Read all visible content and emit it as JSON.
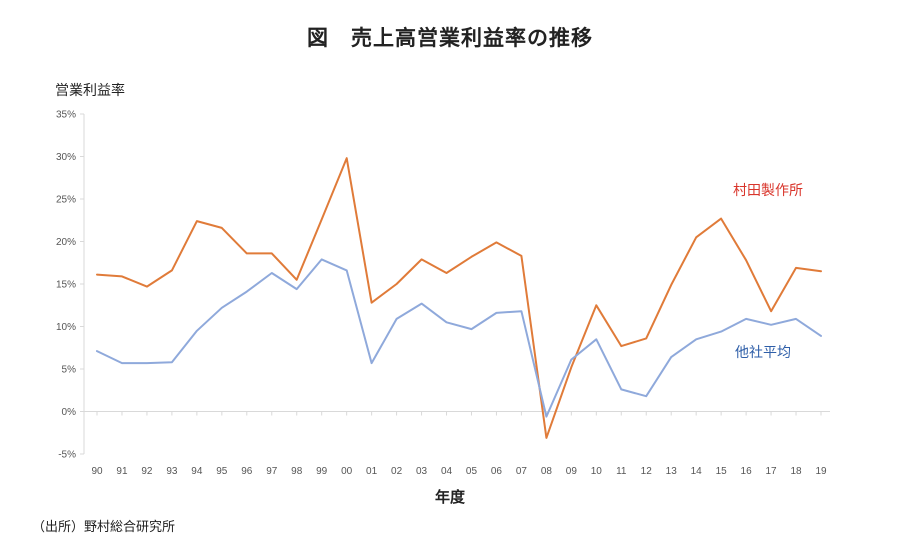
{
  "page": {
    "title": "図　売上高営業利益率の推移",
    "source": "（出所）野村総合研究所"
  },
  "chart_data": {
    "type": "line",
    "title": "図　売上高営業利益率の推移",
    "ylabel": "営業利益率",
    "xlabel": "年度",
    "x": [
      "90",
      "91",
      "92",
      "93",
      "94",
      "95",
      "96",
      "97",
      "98",
      "99",
      "00",
      "01",
      "02",
      "03",
      "04",
      "05",
      "06",
      "07",
      "08",
      "09",
      "10",
      "11",
      "12",
      "13",
      "14",
      "15",
      "16",
      "17",
      "18",
      "19"
    ],
    "ylim": [
      -5,
      35
    ],
    "yticks": [
      -5,
      0,
      5,
      10,
      15,
      20,
      25,
      30,
      35
    ],
    "ytick_labels": [
      "-5%",
      "0%",
      "5%",
      "10%",
      "15%",
      "20%",
      "25%",
      "30%",
      "35%"
    ],
    "grid": false,
    "series": [
      {
        "name": "村田製作所",
        "color": "#E07B39",
        "values": [
          16.1,
          15.9,
          14.7,
          16.6,
          22.4,
          21.6,
          18.6,
          18.6,
          15.5,
          22.6,
          29.8,
          12.8,
          15.0,
          17.9,
          16.3,
          18.2,
          19.9,
          18.3,
          -3.1,
          5.2,
          12.5,
          7.7,
          8.6,
          14.9,
          20.5,
          22.7,
          17.8,
          11.8,
          16.9,
          16.5
        ]
      },
      {
        "name": "他社平均",
        "color": "#8FA9DB",
        "values": [
          7.1,
          5.7,
          5.7,
          5.8,
          9.5,
          12.2,
          14.1,
          16.3,
          14.4,
          17.9,
          16.6,
          5.7,
          10.9,
          12.7,
          10.5,
          9.7,
          11.6,
          11.8,
          -0.6,
          6.1,
          8.5,
          2.6,
          1.8,
          6.4,
          8.5,
          9.4,
          10.9,
          10.2,
          10.9,
          8.9
        ]
      }
    ],
    "series_label_colors": {
      "村田製作所": "#D9352B",
      "他社平均": "#2E5EA8"
    },
    "axis_color": "#D9D9D9"
  }
}
